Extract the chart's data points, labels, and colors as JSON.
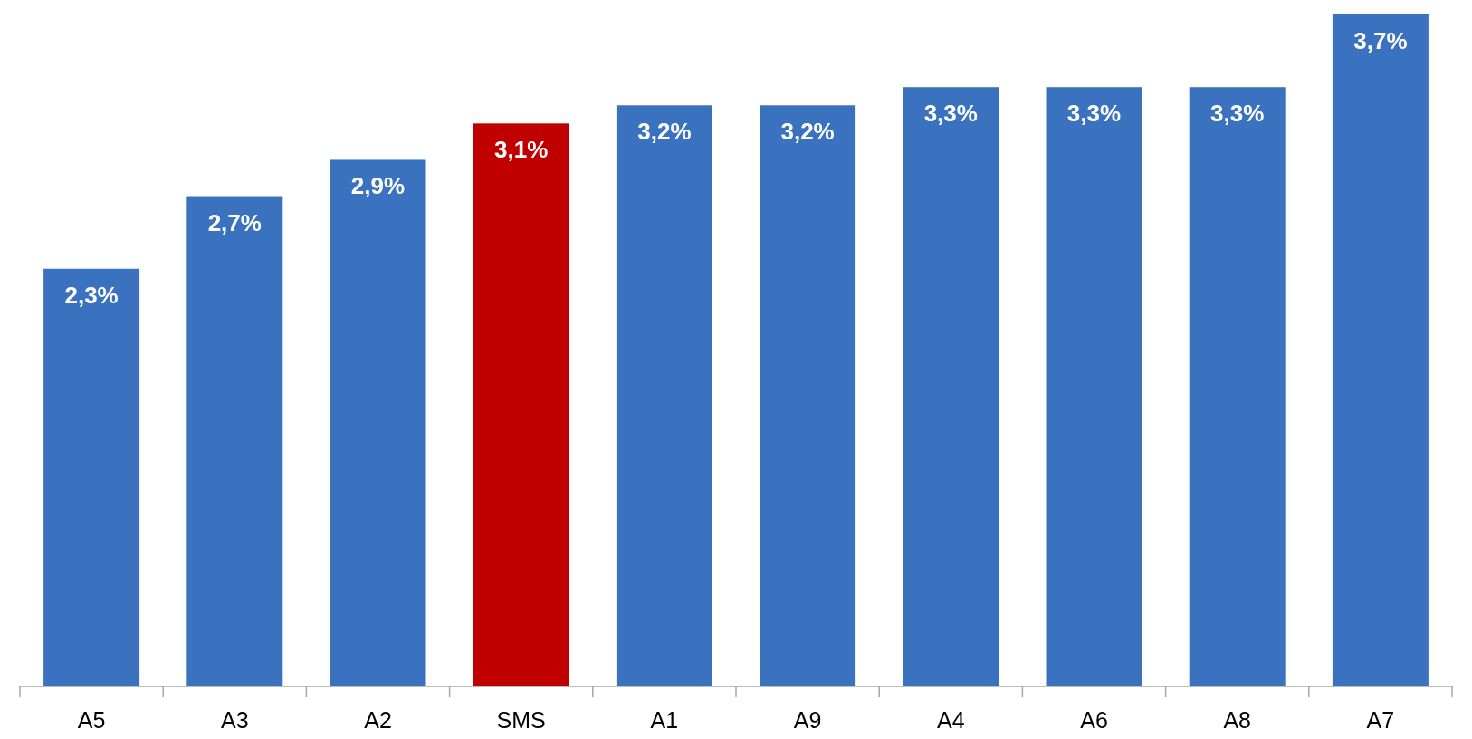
{
  "chart_data": {
    "type": "bar",
    "categories": [
      "A5",
      "A3",
      "A2",
      "SMS",
      "A1",
      "A9",
      "A4",
      "A6",
      "A8",
      "A7"
    ],
    "values": [
      2.3,
      2.7,
      2.9,
      3.1,
      3.2,
      3.2,
      3.3,
      3.3,
      3.3,
      3.7
    ],
    "colors": [
      "#3a72bf",
      "#3a72bf",
      "#3a72bf",
      "#c00000",
      "#3a72bf",
      "#3a72bf",
      "#3a72bf",
      "#3a72bf",
      "#3a72bf",
      "#3a72bf"
    ],
    "value_labels": [
      "2,3%",
      "2,7%",
      "2,9%",
      "3,1%",
      "3,2%",
      "3,2%",
      "3,3%",
      "3,3%",
      "3,3%",
      "3,7%"
    ],
    "data_labels": true
  }
}
